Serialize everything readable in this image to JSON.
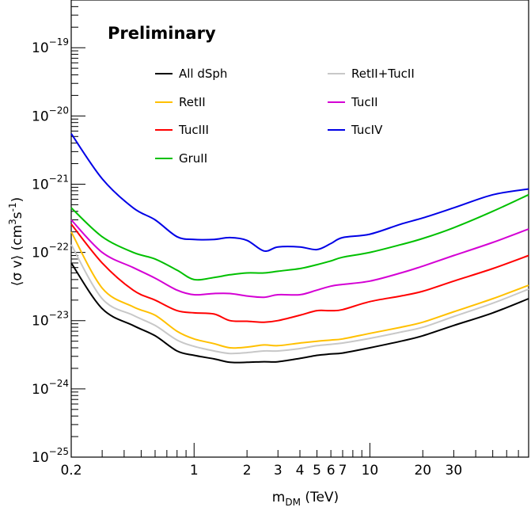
{
  "chart_data": {
    "type": "line",
    "title": "",
    "annotation": "Preliminary",
    "xlabel": {
      "main": "m",
      "sub": "DM",
      "rest": " (TeV)"
    },
    "ylabel": {
      "pre": "⟨σ v⟩ (cm",
      "sup1": "3",
      "mid": "s",
      "sup2": "-1",
      "post": ")"
    },
    "x_scale": "log",
    "y_scale": "log",
    "xlim": [
      0.2,
      80
    ],
    "ylim": [
      1e-25,
      5e-19
    ],
    "grid": false,
    "legend_position": "top",
    "x_ticks": [
      {
        "value": 0.2,
        "label": "0.2"
      },
      {
        "value": 1,
        "label": "1"
      },
      {
        "value": 2,
        "label": "2"
      },
      {
        "value": 3,
        "label": "3"
      },
      {
        "value": 4,
        "label": "4"
      },
      {
        "value": 5,
        "label": "5"
      },
      {
        "value": 6,
        "label": "6"
      },
      {
        "value": 7,
        "label": "7"
      },
      {
        "value": 10,
        "label": "10"
      },
      {
        "value": 20,
        "label": "20"
      },
      {
        "value": 30,
        "label": "30"
      }
    ],
    "y_ticks": [
      {
        "value": 1e-25,
        "base": "10",
        "exp": "−25"
      },
      {
        "value": 1e-24,
        "base": "10",
        "exp": "−24"
      },
      {
        "value": 1e-23,
        "base": "10",
        "exp": "−23"
      },
      {
        "value": 1e-22,
        "base": "10",
        "exp": "−22"
      },
      {
        "value": 1e-21,
        "base": "10",
        "exp": "−21"
      },
      {
        "value": 1e-20,
        "base": "10",
        "exp": "−20"
      },
      {
        "value": 1e-19,
        "base": "10",
        "exp": "−19"
      }
    ],
    "x": [
      0.2,
      0.3,
      0.45,
      0.6,
      0.8,
      1.0,
      1.3,
      1.6,
      2.0,
      2.5,
      3.0,
      4.0,
      5.0,
      6.0,
      7.0,
      10.0,
      15.0,
      20.0,
      30.0,
      50.0,
      80.0
    ],
    "series": [
      {
        "name": "All dSph",
        "color": "#000000",
        "values": [
          7e-23,
          1.5e-23,
          8.5e-24,
          6e-24,
          3.6e-24,
          3.1e-24,
          2.75e-24,
          2.45e-24,
          2.45e-24,
          2.5e-24,
          2.5e-24,
          2.8e-24,
          3.1e-24,
          3.25e-24,
          3.35e-24,
          4e-24,
          5e-24,
          6e-24,
          8.5e-24,
          1.3e-23,
          2.1e-23
        ]
      },
      {
        "name": "RetII",
        "color": "#FFC000",
        "values": [
          2e-22,
          3e-23,
          1.6e-23,
          1.2e-23,
          7e-24,
          5.4e-24,
          4.6e-24,
          4e-24,
          4.1e-24,
          4.4e-24,
          4.3e-24,
          4.7e-24,
          5e-24,
          5.2e-24,
          5.4e-24,
          6.5e-24,
          8e-24,
          9.5e-24,
          1.35e-23,
          2.1e-23,
          3.3e-23
        ]
      },
      {
        "name": "TucIII",
        "color": "#FF0000",
        "values": [
          2.6e-22,
          7e-23,
          2.8e-23,
          2e-23,
          1.4e-23,
          1.3e-23,
          1.25e-23,
          1e-23,
          9.8e-24,
          9.5e-24,
          1e-23,
          1.2e-23,
          1.4e-23,
          1.4e-23,
          1.45e-23,
          1.9e-23,
          2.3e-23,
          2.7e-23,
          3.8e-23,
          5.8e-23,
          9e-23
        ]
      },
      {
        "name": "GruII",
        "color": "#00C000",
        "values": [
          4.5e-22,
          1.7e-22,
          1e-22,
          8e-23,
          5.5e-23,
          4e-23,
          4.3e-23,
          4.7e-23,
          5e-23,
          5e-23,
          5.3e-23,
          5.8e-23,
          6.6e-23,
          7.5e-23,
          8.5e-23,
          1e-22,
          1.3e-22,
          1.6e-22,
          2.3e-22,
          4e-22,
          7e-22
        ]
      },
      {
        "name": "RetII+TucII",
        "color": "#C8C8C8",
        "values": [
          1.3e-22,
          2.1e-23,
          1.2e-23,
          8.5e-24,
          5.2e-24,
          4.2e-24,
          3.6e-24,
          3.3e-24,
          3.4e-24,
          3.6e-24,
          3.6e-24,
          3.9e-24,
          4.3e-24,
          4.5e-24,
          4.7e-24,
          5.5e-24,
          6.8e-24,
          8e-24,
          1.15e-23,
          1.8e-23,
          2.9e-23
        ]
      },
      {
        "name": "TucII",
        "color": "#D400D4",
        "values": [
          3e-22,
          1e-22,
          6e-23,
          4.2e-23,
          2.8e-23,
          2.4e-23,
          2.5e-23,
          2.5e-23,
          2.3e-23,
          2.2e-23,
          2.4e-23,
          2.4e-23,
          2.8e-23,
          3.2e-23,
          3.4e-23,
          3.8e-23,
          5e-23,
          6.3e-23,
          9e-23,
          1.4e-22,
          2.2e-22
        ]
      },
      {
        "name": "TucIV",
        "color": "#0000E6",
        "values": [
          5.5e-21,
          1.2e-21,
          4.5e-22,
          3e-22,
          1.7e-22,
          1.55e-22,
          1.55e-22,
          1.65e-22,
          1.5e-22,
          1.05e-22,
          1.2e-22,
          1.2e-22,
          1.1e-22,
          1.35e-22,
          1.65e-22,
          1.85e-22,
          2.6e-22,
          3.2e-22,
          4.5e-22,
          7e-22,
          8.5e-22
        ]
      }
    ]
  }
}
